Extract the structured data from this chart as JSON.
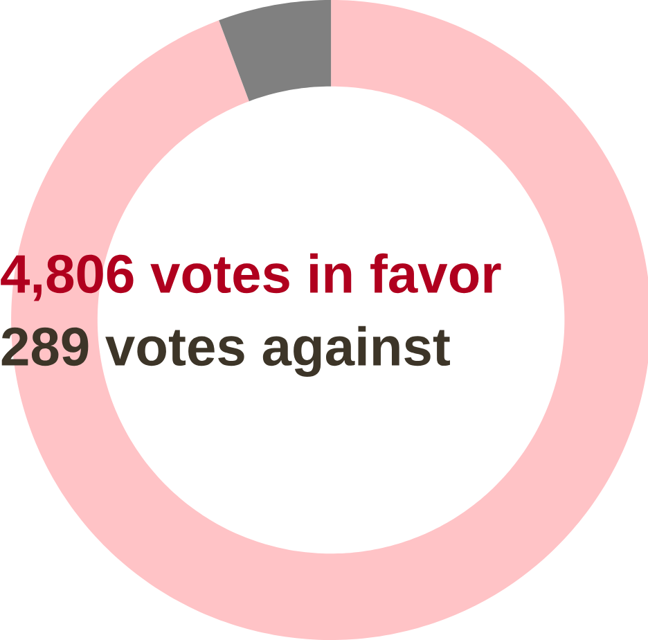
{
  "chart_data": {
    "type": "donut",
    "categories": [
      null,
      null
    ],
    "values": [
      94.3,
      5.7
    ],
    "colors": [
      "#ffc3c6",
      "#808080"
    ],
    "annotations": [
      "4,806 votes in favor",
      "289 votes against"
    ]
  }
}
